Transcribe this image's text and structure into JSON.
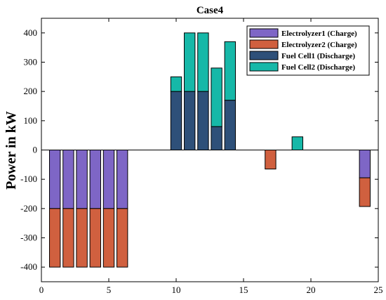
{
  "chart_data": {
    "type": "bar",
    "stacked": true,
    "title": "Case4",
    "xlabel": "",
    "ylabel": "Power in kW",
    "xlim": [
      0,
      25
    ],
    "ylim": [
      -450,
      450
    ],
    "xticks": [
      0,
      5,
      10,
      15,
      20,
      25
    ],
    "yticks": [
      -400,
      -300,
      -200,
      -100,
      0,
      100,
      200,
      300,
      400
    ],
    "grid": false,
    "legend_position": "top-right",
    "x": [
      1,
      2,
      3,
      4,
      5,
      6,
      10,
      11,
      12,
      13,
      14,
      17,
      19,
      24
    ],
    "series": [
      {
        "name": "Electrolyzer1 (Charge)",
        "color": "#7e66c6",
        "values": [
          -200,
          -200,
          -200,
          -200,
          -200,
          -200,
          0,
          0,
          0,
          0,
          0,
          0,
          0,
          -95
        ]
      },
      {
        "name": "Electrolyzer2 (Charge)",
        "color": "#d0603f",
        "values": [
          -200,
          -200,
          -200,
          -200,
          -200,
          -200,
          0,
          0,
          0,
          0,
          0,
          -65,
          0,
          -98
        ]
      },
      {
        "name": "Fuel Cell1 (Discharge)",
        "color": "#2e5079",
        "values": [
          0,
          0,
          0,
          0,
          0,
          0,
          200,
          200,
          200,
          80,
          170,
          0,
          0,
          0
        ]
      },
      {
        "name": "Fuel Cell2 (Discharge)",
        "color": "#16b8a8",
        "values": [
          0,
          0,
          0,
          0,
          0,
          0,
          50,
          200,
          200,
          200,
          200,
          0,
          45,
          0
        ]
      }
    ]
  }
}
